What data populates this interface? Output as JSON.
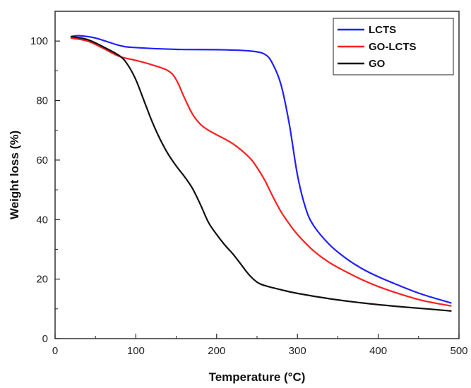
{
  "chart_data": {
    "type": "line",
    "title": "",
    "xlabel": "Temperature (°C)",
    "ylabel": "Weight loss (%)",
    "xlim": [
      0,
      500
    ],
    "ylim": [
      0,
      110
    ],
    "xticks": [
      0,
      100,
      200,
      300,
      400,
      500
    ],
    "yticks": [
      0,
      20,
      40,
      60,
      80,
      100
    ],
    "grid": false,
    "legend_position": "top-right",
    "series": [
      {
        "name": "LCTS",
        "color": "#1f1fff",
        "x": [
          20,
          30,
          50,
          80,
          100,
          150,
          200,
          240,
          260,
          270,
          280,
          290,
          300,
          310,
          320,
          340,
          360,
          380,
          400,
          420,
          440,
          460,
          490
        ],
        "y": [
          101.5,
          101.8,
          101,
          98.5,
          97.8,
          97.2,
          97.1,
          96.7,
          95.5,
          92,
          85,
          72,
          55,
          44,
          38,
          31.5,
          27,
          23.5,
          20.8,
          18.5,
          16.3,
          14.4,
          12
        ]
      },
      {
        "name": "GO-LCTS",
        "color": "#ff1f1f",
        "x": [
          20,
          40,
          60,
          80,
          100,
          120,
          140,
          150,
          160,
          170,
          180,
          190,
          200,
          220,
          240,
          250,
          260,
          270,
          280,
          290,
          300,
          320,
          340,
          360,
          380,
          400,
          420,
          440,
          460,
          490
        ],
        "y": [
          101,
          100,
          97.5,
          94.8,
          93.5,
          92,
          90,
          87,
          81,
          75.5,
          72,
          70,
          68.5,
          65.5,
          61,
          57.5,
          53,
          47.5,
          42.5,
          38.5,
          35,
          29.5,
          25.5,
          22.5,
          19.8,
          17.5,
          15.6,
          13.9,
          12.5,
          11
        ]
      },
      {
        "name": "GO",
        "color": "#111111",
        "x": [
          20,
          40,
          60,
          80,
          90,
          100,
          110,
          120,
          130,
          140,
          150,
          160,
          170,
          180,
          190,
          200,
          210,
          220,
          230,
          240,
          250,
          260,
          280,
          300,
          340,
          380,
          420,
          460,
          490
        ],
        "y": [
          101.5,
          100.5,
          98,
          95,
          92,
          87,
          80,
          73,
          67,
          62,
          58,
          54.5,
          50.5,
          45,
          39,
          35,
          31.5,
          28.5,
          25,
          21.5,
          19,
          17.8,
          16.4,
          15.2,
          13.4,
          12,
          10.9,
          10,
          9.3
        ]
      }
    ]
  }
}
